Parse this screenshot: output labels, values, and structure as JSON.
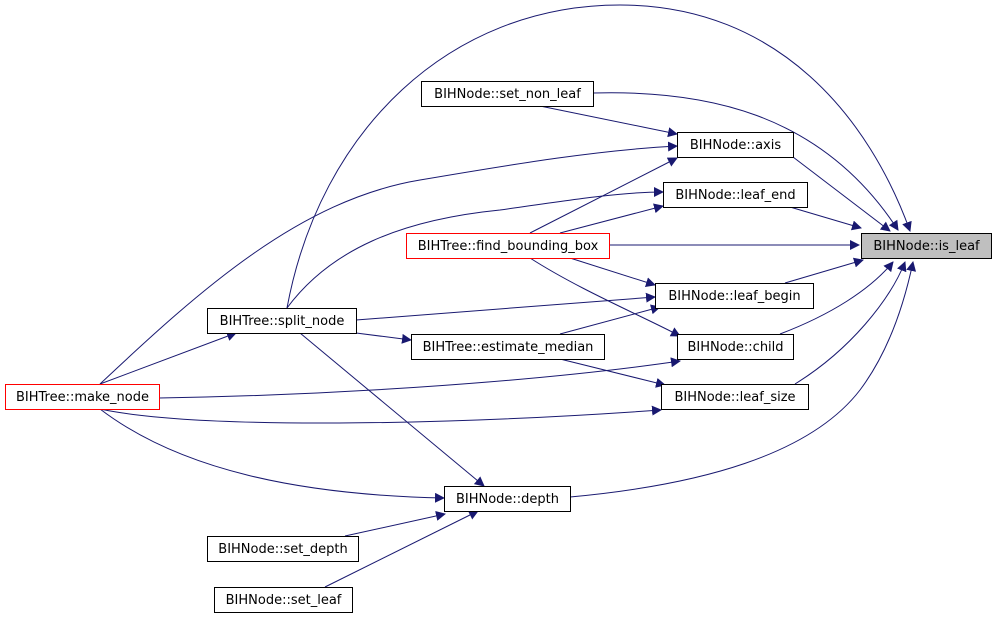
{
  "nodes": [
    {
      "label": "BIHNode::is_leaf"
    },
    {
      "label": "BIHNode::set_non_leaf"
    },
    {
      "label": "BIHNode::axis"
    },
    {
      "label": "BIHNode::leaf_end"
    },
    {
      "label": "BIHTree::find_bounding_box"
    },
    {
      "label": "BIHNode::leaf_begin"
    },
    {
      "label": "BIHTree::split_node"
    },
    {
      "label": "BIHTree::estimate_median"
    },
    {
      "label": "BIHNode::child"
    },
    {
      "label": "BIHTree::make_node"
    },
    {
      "label": "BIHNode::leaf_size"
    },
    {
      "label": "BIHNode::depth"
    },
    {
      "label": "BIHNode::set_depth"
    },
    {
      "label": "BIHNode::set_leaf"
    }
  ]
}
